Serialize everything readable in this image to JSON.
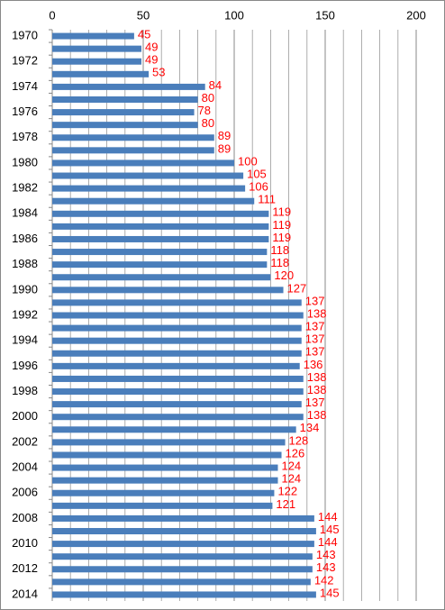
{
  "chart_data": {
    "type": "bar",
    "orientation": "horizontal",
    "categories": [
      "1970",
      null,
      "1972",
      null,
      "1974",
      null,
      "1976",
      null,
      "1978",
      null,
      "1980",
      null,
      "1982",
      null,
      "1984",
      null,
      "1986",
      null,
      "1988",
      null,
      "1990",
      null,
      "1992",
      null,
      "1994",
      null,
      "1996",
      null,
      "1998",
      null,
      "2000",
      null,
      "2002",
      null,
      "2004",
      null,
      "2006",
      null,
      "2008",
      null,
      "2010",
      null,
      "2012",
      null,
      "2014"
    ],
    "values": [
      45,
      49,
      49,
      53,
      84,
      80,
      78,
      80,
      89,
      89,
      100,
      105,
      106,
      111,
      119,
      119,
      119,
      118,
      118,
      120,
      127,
      137,
      138,
      137,
      137,
      137,
      136,
      138,
      138,
      137,
      138,
      134,
      128,
      126,
      124,
      124,
      122,
      121,
      144,
      145,
      144,
      143,
      143,
      142,
      145
    ],
    "color": "#4a7ebb",
    "label_color": "#ff0000",
    "xlim": [
      0,
      200
    ],
    "xticks": [
      0,
      50,
      100,
      150,
      200
    ],
    "xminorticks": [
      10,
      20,
      30,
      40,
      60,
      70,
      80,
      90,
      110,
      120,
      130,
      140,
      160,
      170,
      180,
      190
    ],
    "grid": true
  }
}
